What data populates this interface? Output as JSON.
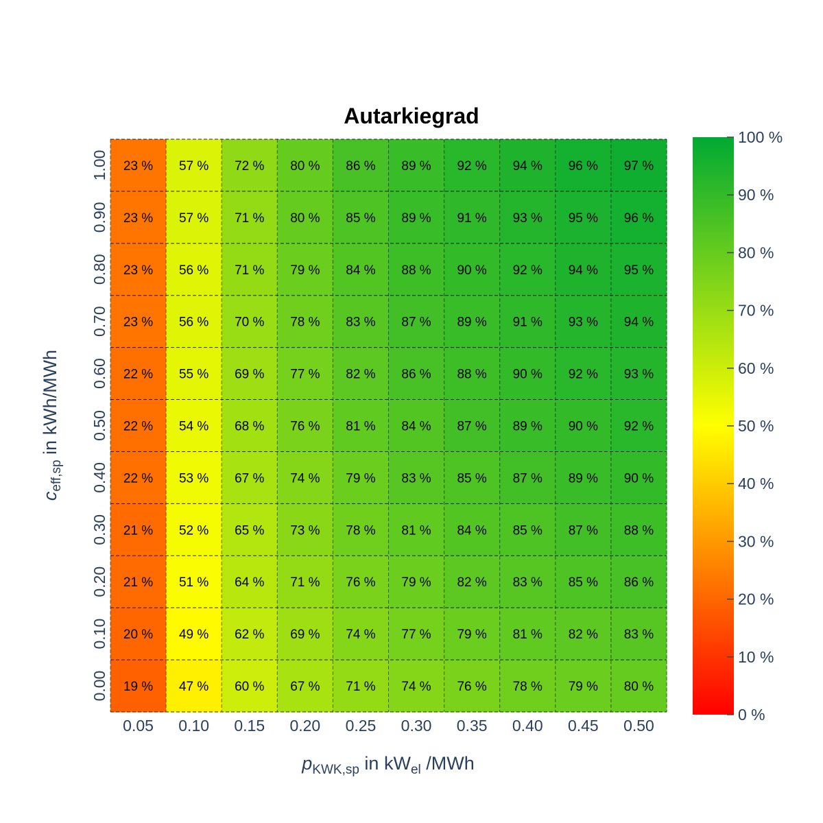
{
  "chart_data": {
    "type": "heatmap",
    "title": "Autarkiegrad",
    "xlabel": {
      "var": "p",
      "sub": "KWK,sp",
      "mid": " in kW",
      "mid_sub": "el",
      "rest": " /MWh"
    },
    "ylabel": {
      "var": "c",
      "sub": "eff,sp",
      "rest": " in kWh/MWh"
    },
    "x": [
      "0.05",
      "0.10",
      "0.15",
      "0.20",
      "0.25",
      "0.30",
      "0.35",
      "0.40",
      "0.45",
      "0.50"
    ],
    "y": [
      "1.00",
      "0.90",
      "0.80",
      "0.70",
      "0.60",
      "0.50",
      "0.40",
      "0.30",
      "0.20",
      "0.10",
      "0.00"
    ],
    "z": [
      [
        23,
        57,
        72,
        80,
        86,
        89,
        92,
        94,
        96,
        97
      ],
      [
        23,
        57,
        71,
        80,
        85,
        89,
        91,
        93,
        95,
        96
      ],
      [
        23,
        56,
        71,
        79,
        84,
        88,
        90,
        92,
        94,
        95
      ],
      [
        23,
        56,
        70,
        78,
        83,
        87,
        89,
        91,
        93,
        94
      ],
      [
        22,
        55,
        69,
        77,
        82,
        86,
        88,
        90,
        92,
        93
      ],
      [
        22,
        54,
        68,
        76,
        81,
        84,
        87,
        89,
        90,
        92
      ],
      [
        22,
        53,
        67,
        74,
        79,
        83,
        85,
        87,
        89,
        90
      ],
      [
        21,
        52,
        65,
        73,
        78,
        81,
        84,
        85,
        87,
        88
      ],
      [
        21,
        51,
        64,
        71,
        76,
        79,
        82,
        83,
        85,
        86
      ],
      [
        20,
        49,
        62,
        69,
        74,
        77,
        79,
        81,
        82,
        83
      ],
      [
        19,
        47,
        60,
        67,
        71,
        74,
        76,
        78,
        79,
        80
      ]
    ],
    "value_suffix": " %",
    "zlim": [
      0,
      100
    ],
    "colorbar": {
      "ticks": [
        "0 %",
        "10 %",
        "20 %",
        "30 %",
        "40 %",
        "50 %",
        "60 %",
        "70 %",
        "80 %",
        "90 %",
        "100 %"
      ],
      "colorscale": [
        "#ff0000",
        "#ffff00",
        "#00a933"
      ]
    },
    "grid": true
  }
}
